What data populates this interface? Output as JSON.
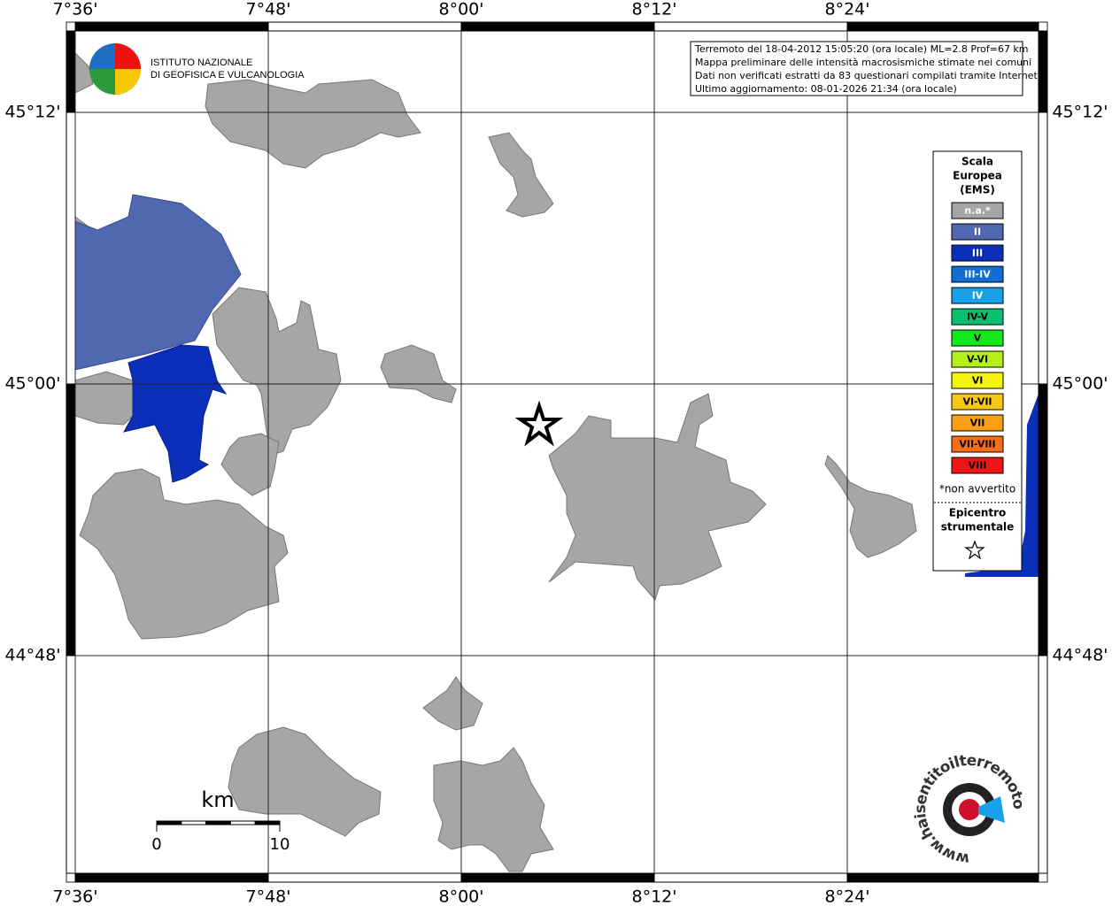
{
  "map": {
    "longitude_labels": [
      "7°36'",
      "7°48'",
      "8°00'",
      "8°12'",
      "8°24'"
    ],
    "latitude_labels": [
      "45°12'",
      "45°00'",
      "44°48'"
    ],
    "info": [
      "Terremoto del 18-04-2012 15:05:20 (ora locale) ML=2.8 Prof=67 km",
      "Mappa preliminare delle intensità macrosismiche stimate nei comuni",
      "Dati non verificati estratti da 83 questionari compilati tramite Internet.",
      "Ultimo aggiornamento: 08-01-2026 21:34 (ora locale)"
    ],
    "logo": [
      "ISTITUTO NAZIONALE",
      "DI GEOFISICA E VULCANOLOGIA"
    ],
    "legend": {
      "title": [
        "Scala",
        "Europea",
        "(EMS)"
      ],
      "items": [
        {
          "label": "n.a.*",
          "color": "#a6a6a6"
        },
        {
          "label": "II",
          "color": "#5068b0"
        },
        {
          "label": "III",
          "color": "#0b2fb8"
        },
        {
          "label": "III-IV",
          "color": "#0f6fd4"
        },
        {
          "label": "IV",
          "color": "#18a0e8"
        },
        {
          "label": "IV-V",
          "color": "#0ac070"
        },
        {
          "label": "V",
          "color": "#12e81c"
        },
        {
          "label": "V-VI",
          "color": "#b4f01a"
        },
        {
          "label": "VI",
          "color": "#f5f50a"
        },
        {
          "label": "VI-VII",
          "color": "#fac814"
        },
        {
          "label": "VII",
          "color": "#faa014"
        },
        {
          "label": "VII-VIII",
          "color": "#f86e14"
        },
        {
          "label": "VIII",
          "color": "#f01414"
        }
      ],
      "note": "*non avvertito",
      "epicenter": [
        "Epicentro",
        "strumentale"
      ]
    },
    "scale_bar": {
      "unit": "km",
      "labels": [
        "0",
        "10"
      ]
    },
    "watermark": "www.haisentitoilterremoto.it"
  }
}
